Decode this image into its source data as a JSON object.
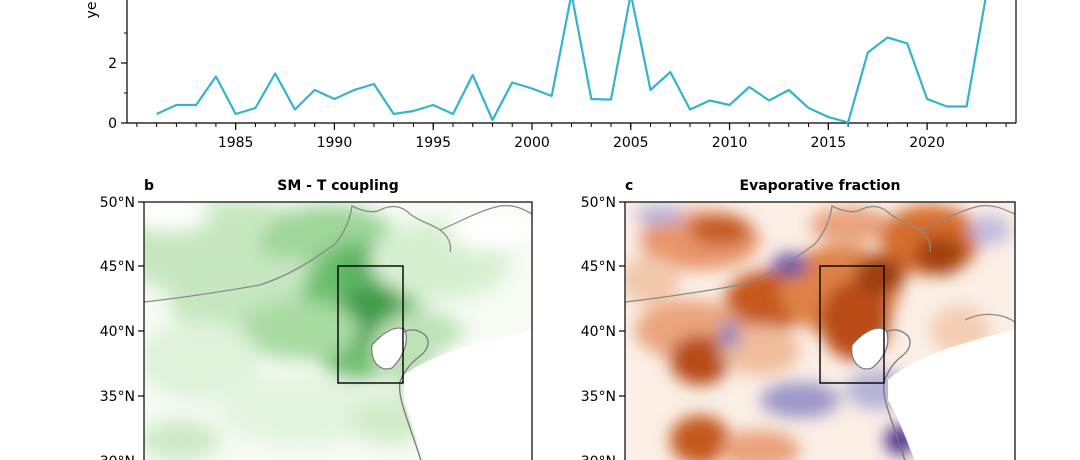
{
  "chart_data": [
    {
      "type": "line",
      "panel": "a",
      "ylabel": "ye",
      "x_ticks": [
        "1985",
        "1990",
        "1995",
        "2000",
        "2005",
        "2010",
        "2015",
        "2020"
      ],
      "y_ticks": [
        "0",
        "2"
      ],
      "xlim": [
        1979.5,
        2024.5
      ],
      "ylim": [
        0,
        4.1
      ],
      "color": "#33b3cc",
      "series": [
        {
          "x": [
            1981,
            1982,
            1983,
            1984,
            1985,
            1986,
            1987,
            1988,
            1989,
            1990,
            1991,
            1992,
            1993,
            1994,
            1995,
            1996,
            1997,
            1998,
            1999,
            2000,
            2001,
            2002,
            2003,
            2004,
            2005,
            2006,
            2007,
            2008,
            2009,
            2010,
            2011,
            2012,
            2013,
            2014,
            2015,
            2016,
            2017,
            2018,
            2019,
            2020,
            2021,
            2022,
            2023
          ],
          "values": [
            0.3,
            0.6,
            0.6,
            1.55,
            0.3,
            0.5,
            1.65,
            0.45,
            1.1,
            0.8,
            1.1,
            1.3,
            0.3,
            0.4,
            0.6,
            0.3,
            1.6,
            0.1,
            1.35,
            1.15,
            0.9,
            4.3,
            0.8,
            0.78,
            4.3,
            1.1,
            1.7,
            0.45,
            0.75,
            0.6,
            1.2,
            0.75,
            1.1,
            0.5,
            0.2,
            0.02,
            2.35,
            2.85,
            2.65,
            0.8,
            0.55,
            0.55,
            4.3
          ]
        }
      ]
    },
    {
      "type": "heatmap",
      "panel": "b",
      "title": "SM - T coupling",
      "y_ticks": [
        "50°N",
        "45°N",
        "40°N",
        "35°N",
        "30°N"
      ],
      "colormap": "greens"
    },
    {
      "type": "heatmap",
      "panel": "c",
      "title": "Evaporative fraction",
      "y_ticks": [
        "50°N",
        "45°N",
        "40°N",
        "35°N",
        "30°N"
      ],
      "colormap": "orange-white-purple"
    }
  ],
  "panels": {
    "b_letter": "b",
    "c_letter": "c"
  }
}
